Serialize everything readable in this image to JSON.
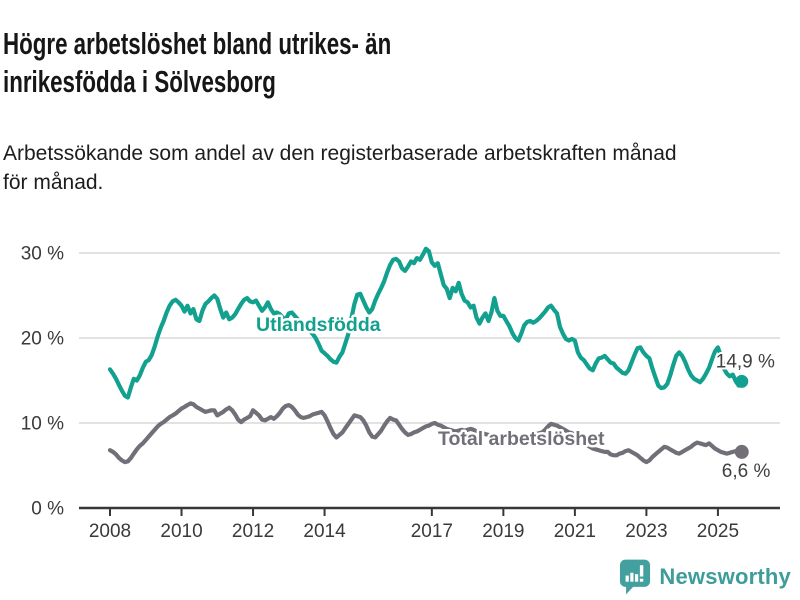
{
  "header": {
    "title_lines": [
      "Högre arbetslöshet bland utrikes- än",
      "inrikesfödda i Sölvesborg"
    ],
    "subtitle_lines": [
      "Arbetssökande som andel av den registerbaserade arbetskraften månad",
      "för månad."
    ]
  },
  "footer": {
    "brand": "Newsworthy",
    "brand_icon": "newsworthy-speech-bubble-bar-chart-icon"
  },
  "colors": {
    "accent_teal": "#12a08f",
    "series_gray": "#726f78",
    "grid": "#d9d9d9",
    "axis": "#373737",
    "tick_label": "#3a3a3a",
    "annotation": "#3f3f3f",
    "halo": "#ffffff",
    "logo_teal": "#3d9d9a"
  },
  "chart_data": {
    "type": "line",
    "title": "Högre arbetslöshet bland utrikes- än inrikesfödda i Sölvesborg",
    "subtitle": "Arbetssökande som andel av den registerbaserade arbetskraften månad för månad.",
    "unit": "%",
    "frequency": "monthly",
    "x_start": {
      "year": 2008,
      "month": 1
    },
    "x_end": {
      "year": 2025,
      "month": 9
    },
    "x_tick_years": [
      2008,
      2010,
      2012,
      2014,
      2017,
      2019,
      2021,
      2023,
      2025
    ],
    "y_ticks": [
      {
        "value": 0,
        "label": "0 %"
      },
      {
        "value": 10,
        "label": "10 %"
      },
      {
        "value": 20,
        "label": "20 %"
      },
      {
        "value": 30,
        "label": "30 %"
      }
    ],
    "ylim": [
      0,
      32
    ],
    "grid": true,
    "legend_position": "inline-labels",
    "series": [
      {
        "name": "Utlandsfödda",
        "color": "#12a08f",
        "end_label": "14,9 %",
        "last_value": 14.9,
        "values": [
          16.3,
          15.8,
          15.2,
          14.5,
          13.8,
          13.2,
          13.0,
          14.2,
          15.2,
          15.0,
          15.6,
          16.5,
          17.2,
          17.4,
          18.0,
          19.0,
          20.2,
          21.2,
          22.0,
          23.0,
          23.8,
          24.3,
          24.5,
          24.2,
          23.8,
          23.1,
          23.8,
          22.9,
          23.4,
          22.2,
          22.0,
          23.2,
          24.0,
          24.3,
          24.7,
          25.0,
          24.6,
          23.4,
          22.4,
          23.0,
          22.2,
          22.4,
          22.8,
          23.4,
          24.0,
          24.5,
          24.7,
          24.3,
          24.2,
          24.4,
          23.8,
          23.2,
          23.6,
          24.2,
          23.4,
          22.9,
          23.0,
          22.8,
          22.4,
          22.2,
          22.9,
          23.0,
          22.6,
          22.2,
          22.0,
          21.6,
          21.2,
          20.8,
          20.5,
          20.0,
          19.3,
          18.5,
          18.2,
          17.9,
          17.5,
          17.2,
          17.1,
          17.8,
          18.3,
          19.4,
          20.5,
          22.3,
          24.0,
          25.1,
          25.2,
          24.4,
          23.6,
          23.0,
          23.4,
          24.4,
          25.2,
          25.9,
          26.7,
          27.7,
          28.6,
          29.2,
          29.3,
          29.0,
          28.2,
          27.9,
          28.4,
          29.0,
          28.8,
          29.4,
          29.2,
          29.8,
          30.5,
          30.2,
          28.9,
          28.5,
          28.8,
          27.5,
          26.2,
          25.8,
          24.7,
          25.9,
          25.5,
          26.5,
          25.2,
          24.4,
          24.2,
          23.6,
          23.8,
          22.4,
          21.7,
          22.4,
          22.9,
          22.0,
          23.0,
          24.7,
          23.2,
          22.6,
          22.6,
          22.0,
          21.4,
          20.6,
          20.0,
          19.7,
          20.5,
          21.5,
          21.9,
          22.0,
          21.8,
          22.0,
          22.3,
          22.7,
          23.1,
          23.6,
          23.8,
          23.3,
          22.9,
          21.3,
          20.5,
          19.9,
          19.7,
          19.9,
          19.7,
          18.3,
          17.7,
          17.4,
          16.9,
          16.4,
          16.2,
          17.0,
          17.6,
          17.7,
          17.9,
          17.5,
          17.1,
          17.0,
          16.5,
          16.2,
          15.9,
          15.8,
          16.2,
          17.1,
          18.0,
          18.8,
          18.9,
          18.3,
          17.9,
          17.6,
          16.4,
          15.4,
          14.4,
          14.1,
          14.2,
          14.6,
          15.6,
          16.8,
          17.9,
          18.3,
          17.9,
          17.2,
          16.3,
          15.6,
          15.2,
          15.0,
          14.8,
          15.2,
          15.8,
          16.5,
          17.5,
          18.4,
          18.9,
          17.9,
          16.4,
          15.8,
          15.5,
          15.7,
          14.9,
          14.4,
          14.9
        ]
      },
      {
        "name": "Total arbetslöshet",
        "color": "#726f78",
        "end_label": "6,6 %",
        "last_value": 6.6,
        "values": [
          6.8,
          6.6,
          6.3,
          5.9,
          5.6,
          5.4,
          5.5,
          5.9,
          6.4,
          6.9,
          7.3,
          7.6,
          8.0,
          8.4,
          8.8,
          9.2,
          9.6,
          9.9,
          10.1,
          10.4,
          10.7,
          10.9,
          11.1,
          11.4,
          11.7,
          11.9,
          12.1,
          12.3,
          12.2,
          11.9,
          11.7,
          11.5,
          11.3,
          11.4,
          11.5,
          11.5,
          10.9,
          11.1,
          11.3,
          11.6,
          11.8,
          11.5,
          11.0,
          10.4,
          10.1,
          10.4,
          10.6,
          10.8,
          11.5,
          11.2,
          10.9,
          10.4,
          10.3,
          10.5,
          10.7,
          10.5,
          10.8,
          11.2,
          11.7,
          12.0,
          12.1,
          11.9,
          11.5,
          11.0,
          10.7,
          10.6,
          10.7,
          10.8,
          11.0,
          11.1,
          11.2,
          11.3,
          10.9,
          10.2,
          9.4,
          8.7,
          8.3,
          8.6,
          8.9,
          9.4,
          9.9,
          10.4,
          10.9,
          10.8,
          10.7,
          10.3,
          9.7,
          8.9,
          8.4,
          8.3,
          8.7,
          9.1,
          9.7,
          10.2,
          10.6,
          10.4,
          10.3,
          9.8,
          9.3,
          8.9,
          8.6,
          8.7,
          8.9,
          9.0,
          9.2,
          9.4,
          9.6,
          9.7,
          9.9,
          10.0,
          9.8,
          9.7,
          9.5,
          9.3,
          9.2,
          9.1,
          9.0,
          9.1,
          9.2,
          9.1,
          9.2,
          9.3,
          9.2,
          9.0,
          8.9,
          8.8,
          8.7,
          8.6,
          8.5,
          8.5,
          8.4,
          8.4,
          8.3,
          8.2,
          8.1,
          8.0,
          8.0,
          8.1,
          8.3,
          8.4,
          8.4,
          8.5,
          8.6,
          8.7,
          8.8,
          8.9,
          9.2,
          9.6,
          9.9,
          9.8,
          9.7,
          9.5,
          9.3,
          9.1,
          8.9,
          8.8,
          8.6,
          8.3,
          8.0,
          7.7,
          7.4,
          7.2,
          7.0,
          6.9,
          6.8,
          6.7,
          6.6,
          6.6,
          6.3,
          6.2,
          6.2,
          6.4,
          6.5,
          6.7,
          6.8,
          6.6,
          6.4,
          6.2,
          5.9,
          5.6,
          5.4,
          5.6,
          6.0,
          6.3,
          6.6,
          6.9,
          7.2,
          7.1,
          6.9,
          6.7,
          6.5,
          6.4,
          6.6,
          6.8,
          7.0,
          7.2,
          7.5,
          7.7,
          7.6,
          7.5,
          7.4,
          7.6,
          7.3,
          7.0,
          6.8,
          6.6,
          6.5,
          6.4,
          6.5,
          6.6,
          6.7,
          6.6,
          6.6
        ]
      }
    ]
  }
}
